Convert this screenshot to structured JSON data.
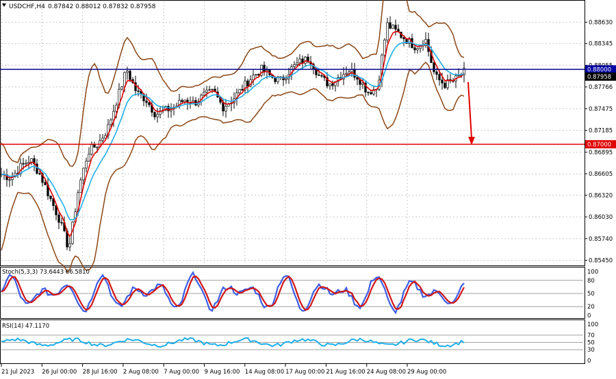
{
  "header": {
    "menu_icon": "triangle-down-icon",
    "symbol": "USDCHF,H4",
    "ohlc": "0.87842 0.88012 0.87832 0.87958"
  },
  "main_panel": {
    "y_ticks": [
      "0.88630",
      "0.88345",
      "0.88055",
      "0.87766",
      "0.87475",
      "0.87185",
      "0.86895",
      "0.86605",
      "0.86320",
      "0.86030",
      "0.85740",
      "0.85450"
    ],
    "price_tags": [
      {
        "value": "0.88000",
        "color": "#0000a0"
      },
      {
        "value": "0.87958",
        "color": "#000000"
      },
      {
        "value": "0.87000",
        "color": "#e00000"
      }
    ],
    "levels": [
      {
        "price": 0.88,
        "color": "#00008b"
      },
      {
        "price": 0.87,
        "color": "#e00000"
      }
    ],
    "colors": {
      "bollinger": "#8b4513",
      "ma_fast": "#e00000",
      "ma_slow": "#1eaee8",
      "candles": "#000000",
      "arrow": "#e00000"
    }
  },
  "stochastic_panel": {
    "label": "Stoch(5,3,3) 73.6443 66.5810",
    "y_ticks": [
      "100",
      "80",
      "50",
      "20",
      "0"
    ],
    "colors": {
      "main": "#3a5ee6",
      "signal": "#d21414"
    }
  },
  "rsi_panel": {
    "label": "RSI(14) 47.1170",
    "y_ticks": [
      "100",
      "70",
      "50",
      "30",
      "0"
    ],
    "colors": {
      "line": "#1eaee8"
    }
  },
  "time_axis": [
    "21 Jul 2023",
    "26 Jul 00:00",
    "28 Jul 16:00",
    "2 Aug 08:00",
    "7 Aug 00:00",
    "9 Aug 16:00",
    "14 Aug 08:00",
    "17 Aug 00:00",
    "21 Aug 16:00",
    "24 Aug 08:00",
    "29 Aug 00:00"
  ],
  "chart_data": {
    "type": "line",
    "series": [
      {
        "values": [
          0.866,
          0.8655,
          0.867,
          0.868,
          0.866,
          0.863,
          0.86,
          0.856,
          0.864,
          0.869,
          0.87,
          0.872,
          0.876,
          0.88,
          0.877,
          0.876,
          0.874,
          0.8745,
          0.875,
          0.876,
          0.8755,
          0.8765,
          0.877,
          0.875,
          0.876,
          0.8775,
          0.879,
          0.88,
          0.879,
          0.8785,
          0.88,
          0.881,
          0.8815,
          0.879,
          0.878,
          0.879,
          0.88,
          0.879,
          0.877,
          0.8775,
          0.886,
          0.885,
          0.884,
          0.883,
          0.884,
          0.879,
          0.878,
          0.8785,
          0.8796
        ]
      },
      {
        "values": [
          0.863,
          0.8645,
          0.866,
          0.8665,
          0.8655,
          0.864,
          0.862,
          0.86,
          0.862,
          0.866,
          0.8685,
          0.8705,
          0.8735,
          0.876,
          0.8765,
          0.876,
          0.875,
          0.8745,
          0.8748,
          0.8752,
          0.8755,
          0.876,
          0.8762,
          0.876,
          0.8762,
          0.877,
          0.878,
          0.879,
          0.8792,
          0.879,
          0.8795,
          0.88,
          0.8805,
          0.88,
          0.8795,
          0.8795,
          0.8798,
          0.8795,
          0.8785,
          0.8785,
          0.883,
          0.884,
          0.884,
          0.8835,
          0.8836,
          0.882,
          0.8805,
          0.8795,
          0.879
        ]
      }
    ]
  }
}
